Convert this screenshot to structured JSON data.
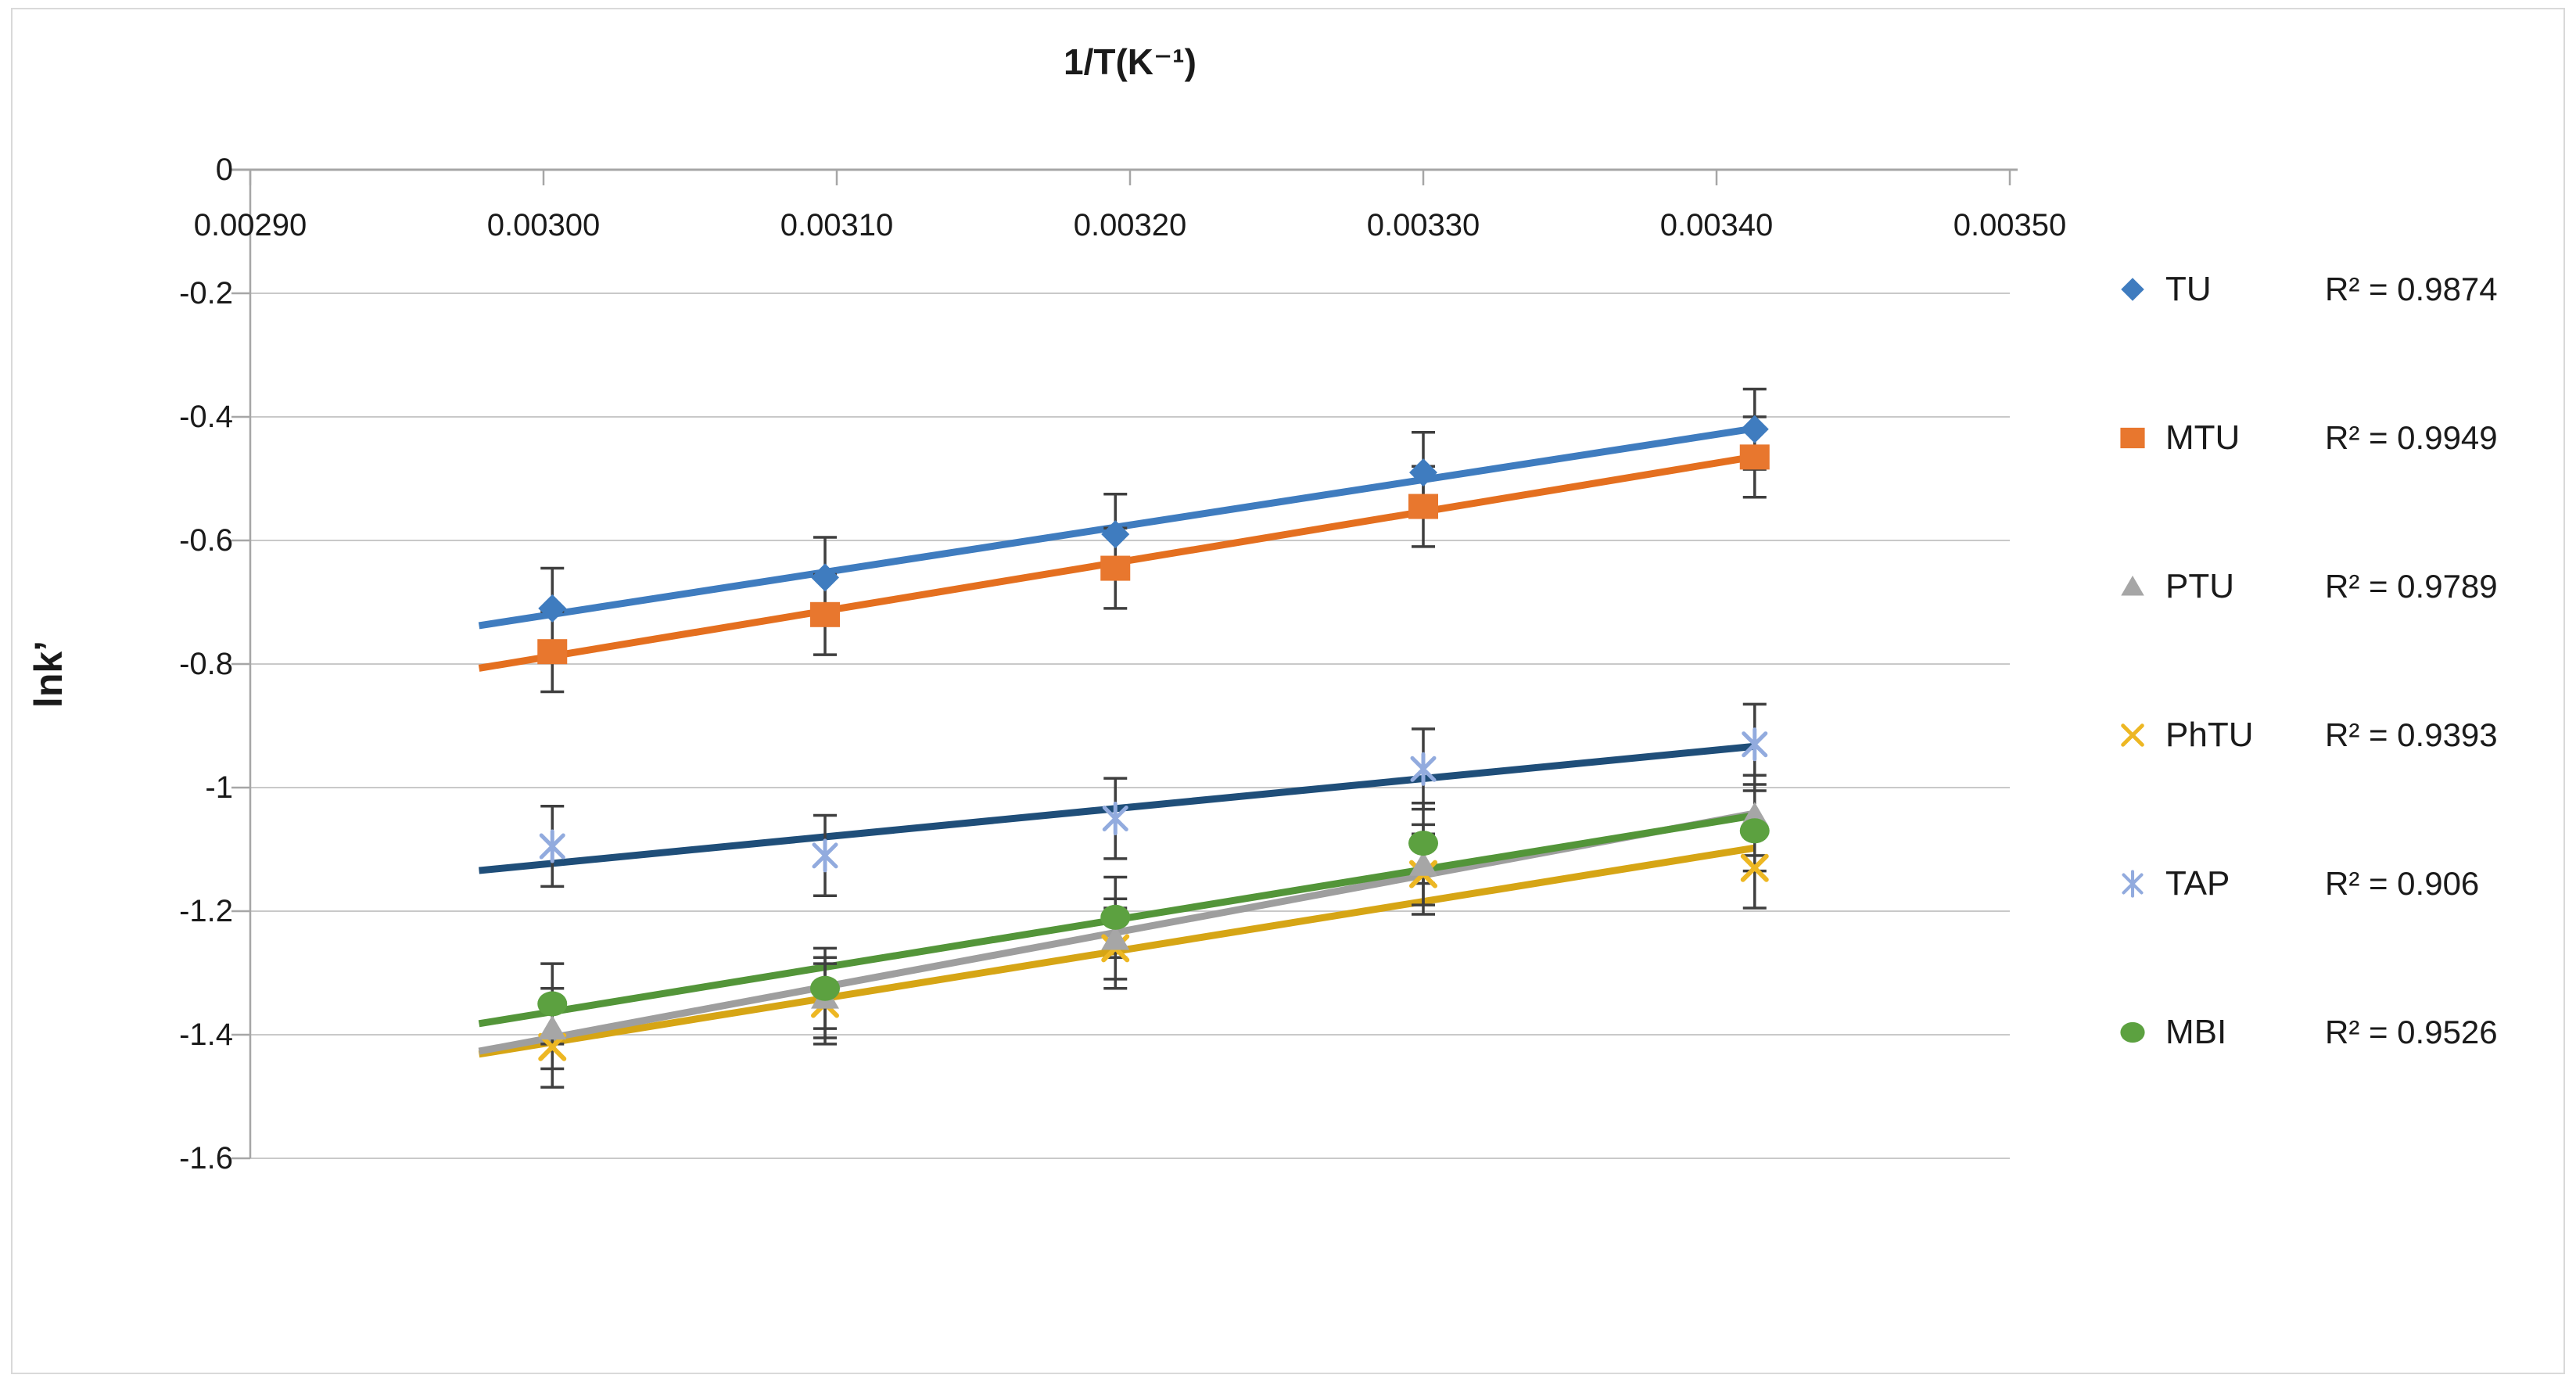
{
  "figure": {
    "title": "1/T(K⁻¹)",
    "ylabel": "lnk’"
  },
  "chart_data": {
    "type": "scatter",
    "title": "1/T(K⁻¹)",
    "title_position": "top",
    "ylabel": "lnk’",
    "xlabel": "",
    "xlim": [
      0.0029,
      0.0035
    ],
    "ylim": [
      -1.6,
      0
    ],
    "grid": true,
    "axis_side": "x axis drawn at y=0 (top of plot), ticks and labels below it",
    "legend_position": "right",
    "x": [
      0.003003,
      0.003096,
      0.003195,
      0.0033,
      0.003413
    ],
    "series": [
      {
        "name": "TU",
        "marker": "diamond",
        "color": "#3F7CBF",
        "line_color": "#3F7CBF",
        "values": [
          -0.71,
          -0.66,
          -0.59,
          -0.49,
          -0.42
        ],
        "r2_label": "R² = 0.9874"
      },
      {
        "name": "MTU",
        "marker": "square",
        "color": "#E8772E",
        "line_color": "#E46F1F",
        "values": [
          -0.78,
          -0.72,
          -0.645,
          -0.545,
          -0.465
        ],
        "r2_label": "R² = 0.9949"
      },
      {
        "name": "PTU",
        "marker": "triangle",
        "color": "#A6A6A6",
        "line_color": "#9E9E9E",
        "values": [
          -1.39,
          -1.34,
          -1.245,
          -1.125,
          -1.045
        ],
        "r2_label": "R² = 0.9789"
      },
      {
        "name": "PhTU",
        "marker": "x",
        "color": "#EDB723",
        "line_color": "#D6A515",
        "values": [
          -1.42,
          -1.35,
          -1.26,
          -1.14,
          -1.13
        ],
        "r2_label": "R² = 0.9393"
      },
      {
        "name": "TAP",
        "marker": "star",
        "color": "#92ABDE",
        "line_color": "#1F4E79",
        "values": [
          -1.095,
          -1.11,
          -1.05,
          -0.97,
          -0.93
        ],
        "r2_label": "R² = 0.906"
      },
      {
        "name": "MBI",
        "marker": "circle",
        "color": "#5CA140",
        "line_color": "#539539",
        "values": [
          -1.35,
          -1.325,
          -1.21,
          -1.09,
          -1.07
        ],
        "r2_label": "R² = 0.9526"
      }
    ],
    "error_bar_half_height": 0.065,
    "trendline": "linear least-squares per series, drawn from slightly before first point to last point",
    "trend_back_extension": 2.5e-05,
    "draw_order": [
      4,
      3,
      2,
      5,
      1,
      0
    ],
    "x_ticks": [
      {
        "v": 0.0029,
        "label": "0.00290"
      },
      {
        "v": 0.003,
        "label": "0.00300"
      },
      {
        "v": 0.0031,
        "label": "0.00310"
      },
      {
        "v": 0.0032,
        "label": "0.00320"
      },
      {
        "v": 0.0033,
        "label": "0.00330"
      },
      {
        "v": 0.0034,
        "label": "0.00340"
      },
      {
        "v": 0.0035,
        "label": "0.00350"
      }
    ],
    "y_ticks": [
      {
        "v": 0,
        "label": "0"
      },
      {
        "v": -0.2,
        "label": "-0.2"
      },
      {
        "v": -0.4,
        "label": "-0.4"
      },
      {
        "v": -0.6,
        "label": "-0.6"
      },
      {
        "v": -0.8,
        "label": "-0.8"
      },
      {
        "v": -1,
        "label": "-1"
      },
      {
        "v": -1.2,
        "label": "-1.2"
      },
      {
        "v": -1.4,
        "label": "-1.4"
      },
      {
        "v": -1.6,
        "label": "-1.6"
      }
    ]
  },
  "colors": {
    "background": "#FFFFFF",
    "border": "#D9D9D9",
    "gridline": "#C9C9C9",
    "axis": "#A6A6A6",
    "error_bar": "#3F3F3F",
    "text": "#1A1A1A"
  }
}
